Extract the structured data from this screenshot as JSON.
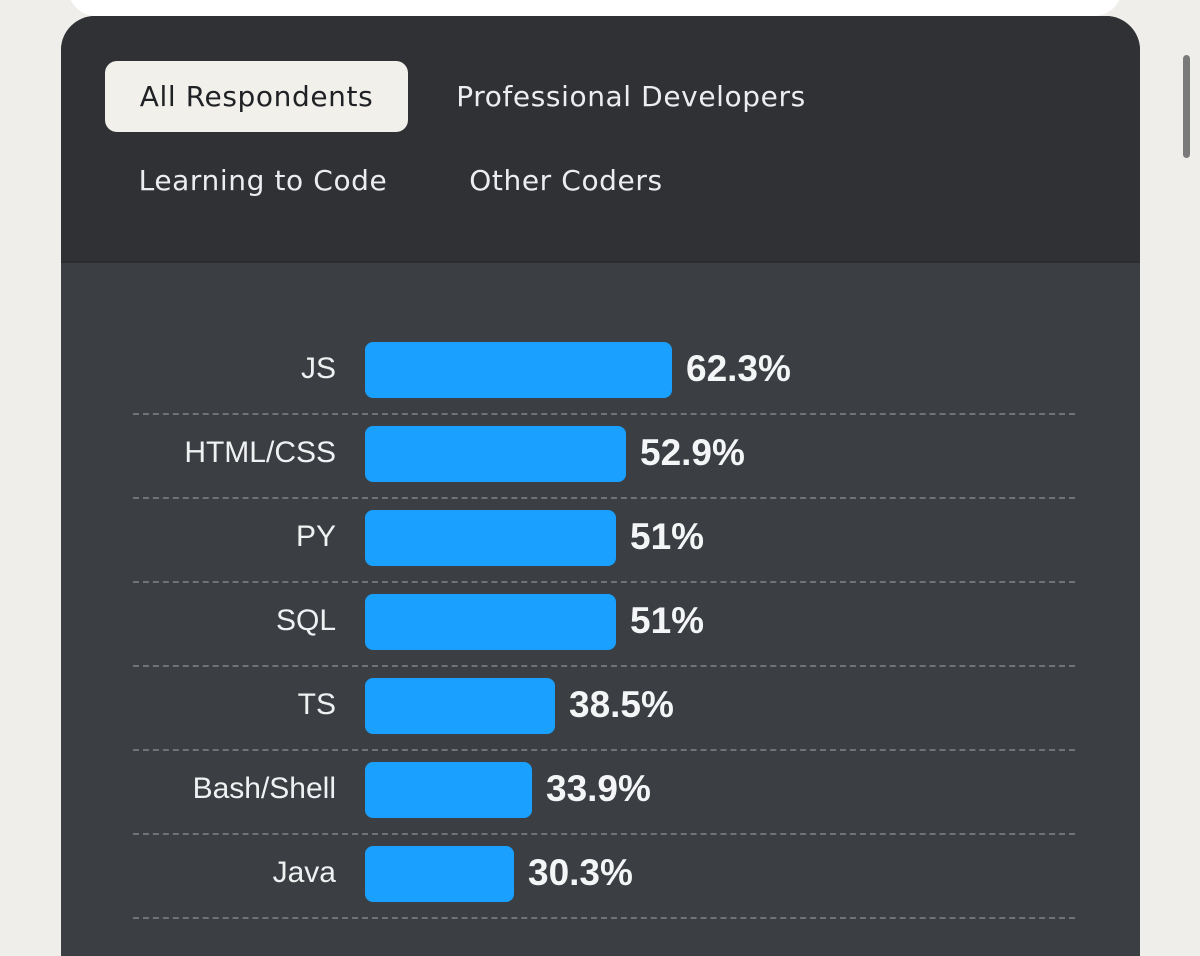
{
  "tabs": [
    {
      "label": "All Respondents",
      "active": true
    },
    {
      "label": "Professional Developers",
      "active": false
    },
    {
      "label": "Learning to Code",
      "active": false
    },
    {
      "label": "Other Coders",
      "active": false
    }
  ],
  "colors": {
    "bar": "#1aa0ff",
    "panel": "#3b3e42",
    "tabs_area": "#2f3134",
    "active_tab": "#f1f0eb"
  },
  "chart_data": {
    "type": "bar",
    "orientation": "horizontal",
    "categories": [
      "JS",
      "HTML/CSS",
      "PY",
      "SQL",
      "TS",
      "Bash/Shell",
      "Java"
    ],
    "values": [
      62.3,
      52.9,
      51,
      51,
      38.5,
      33.9,
      30.3
    ],
    "value_labels": [
      "62.3%",
      "52.9%",
      "51%",
      "51%",
      "38.5%",
      "33.9%",
      "30.3%"
    ]
  }
}
